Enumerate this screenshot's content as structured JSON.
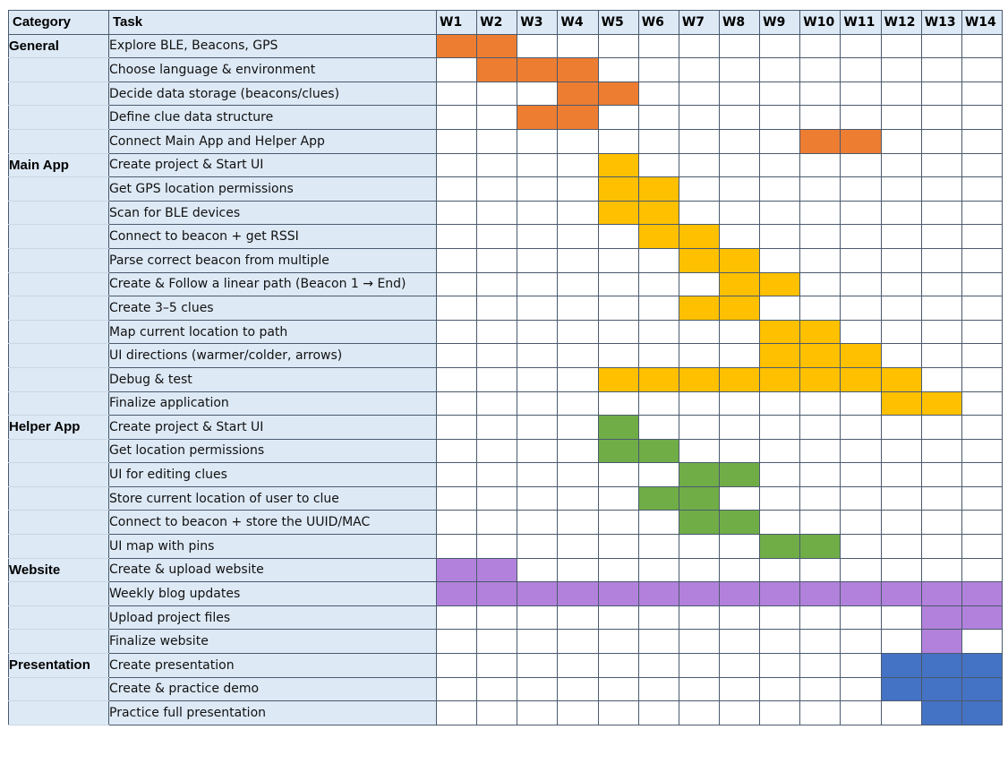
{
  "header": {
    "category": "Category",
    "task": "Task",
    "weeks": [
      "W1",
      "W2",
      "W3",
      "W4",
      "W5",
      "W6",
      "W7",
      "W8",
      "W9",
      "W10",
      "W11",
      "W12",
      "W13",
      "W14"
    ]
  },
  "colors": {
    "General": "#ed7d31",
    "Main App": "#ffc000",
    "Helper App": "#70ad47",
    "Website": "#b281db",
    "Presentation": "#4472c4",
    "label_bg": "#dde9f5",
    "grid_line": "#4a5a6e"
  },
  "chart_data": {
    "type": "table",
    "title": "",
    "columns": [
      "Category",
      "Task",
      "W1",
      "W2",
      "W3",
      "W4",
      "W5",
      "W6",
      "W7",
      "W8",
      "W9",
      "W10",
      "W11",
      "W12",
      "W13",
      "W14"
    ],
    "categories": [
      "General",
      "Main App",
      "Helper App",
      "Website",
      "Presentation"
    ],
    "rows": [
      {
        "category": "General",
        "task": "Explore BLE, Beacons, GPS",
        "weeks": [
          1,
          2
        ]
      },
      {
        "category": "General",
        "task": "Choose language & environment",
        "weeks": [
          2,
          3,
          4
        ]
      },
      {
        "category": "General",
        "task": "Decide data storage (beacons/clues)",
        "weeks": [
          4,
          5
        ]
      },
      {
        "category": "General",
        "task": "Define clue data structure",
        "weeks": [
          3,
          4
        ]
      },
      {
        "category": "General",
        "task": "Connect Main App and Helper App",
        "weeks": [
          10,
          11
        ]
      },
      {
        "category": "Main App",
        "task": "Create project & Start UI",
        "weeks": [
          5
        ]
      },
      {
        "category": "Main App",
        "task": "Get GPS location permissions",
        "weeks": [
          5,
          6
        ]
      },
      {
        "category": "Main App",
        "task": "Scan for BLE devices",
        "weeks": [
          5,
          6
        ]
      },
      {
        "category": "Main App",
        "task": "Connect to beacon + get RSSI",
        "weeks": [
          6,
          7
        ]
      },
      {
        "category": "Main App",
        "task": "Parse correct beacon from multiple",
        "weeks": [
          7,
          8
        ]
      },
      {
        "category": "Main App",
        "task": "Create & Follow a linear path (Beacon 1 → End)",
        "weeks": [
          8,
          9
        ],
        "tall": true
      },
      {
        "category": "Main App",
        "task": "Create 3–5 clues",
        "weeks": [
          7,
          8
        ]
      },
      {
        "category": "Main App",
        "task": "Map current location to path",
        "weeks": [
          9,
          10
        ]
      },
      {
        "category": "Main App",
        "task": "UI directions (warmer/colder, arrows)",
        "weeks": [
          9,
          10,
          11
        ]
      },
      {
        "category": "Main App",
        "task": "Debug & test",
        "weeks": [
          5,
          6,
          7,
          8,
          9,
          10,
          11,
          12
        ]
      },
      {
        "category": "Main App",
        "task": "Finalize application",
        "weeks": [
          12,
          13
        ]
      },
      {
        "category": "Helper App",
        "task": "Create project & Start UI",
        "weeks": [
          5
        ]
      },
      {
        "category": "Helper App",
        "task": "Get location permissions",
        "weeks": [
          5,
          6
        ]
      },
      {
        "category": "Helper App",
        "task": "UI for editing clues",
        "weeks": [
          7,
          8
        ]
      },
      {
        "category": "Helper App",
        "task": "Store current location of user to clue",
        "weeks": [
          6,
          7
        ]
      },
      {
        "category": "Helper App",
        "task": "Connect to beacon + store the UUID/MAC",
        "weeks": [
          7,
          8
        ]
      },
      {
        "category": "Helper App",
        "task": "UI map with pins",
        "weeks": [
          9,
          10
        ]
      },
      {
        "category": "Website",
        "task": "Create & upload website",
        "weeks": [
          1,
          2
        ]
      },
      {
        "category": "Website",
        "task": "Weekly blog updates",
        "weeks": [
          1,
          2,
          3,
          4,
          5,
          6,
          7,
          8,
          9,
          10,
          11,
          12,
          13,
          14
        ]
      },
      {
        "category": "Website",
        "task": "Upload project files",
        "weeks": [
          13,
          14
        ]
      },
      {
        "category": "Website",
        "task": "Finalize website",
        "weeks": [
          13
        ]
      },
      {
        "category": "Presentation",
        "task": "Create presentation",
        "weeks": [
          12,
          13,
          14
        ]
      },
      {
        "category": "Presentation",
        "task": "Create & practice demo",
        "weeks": [
          12,
          13,
          14
        ]
      },
      {
        "category": "Presentation",
        "task": "Practice full presentation",
        "weeks": [
          13,
          14
        ]
      }
    ]
  }
}
